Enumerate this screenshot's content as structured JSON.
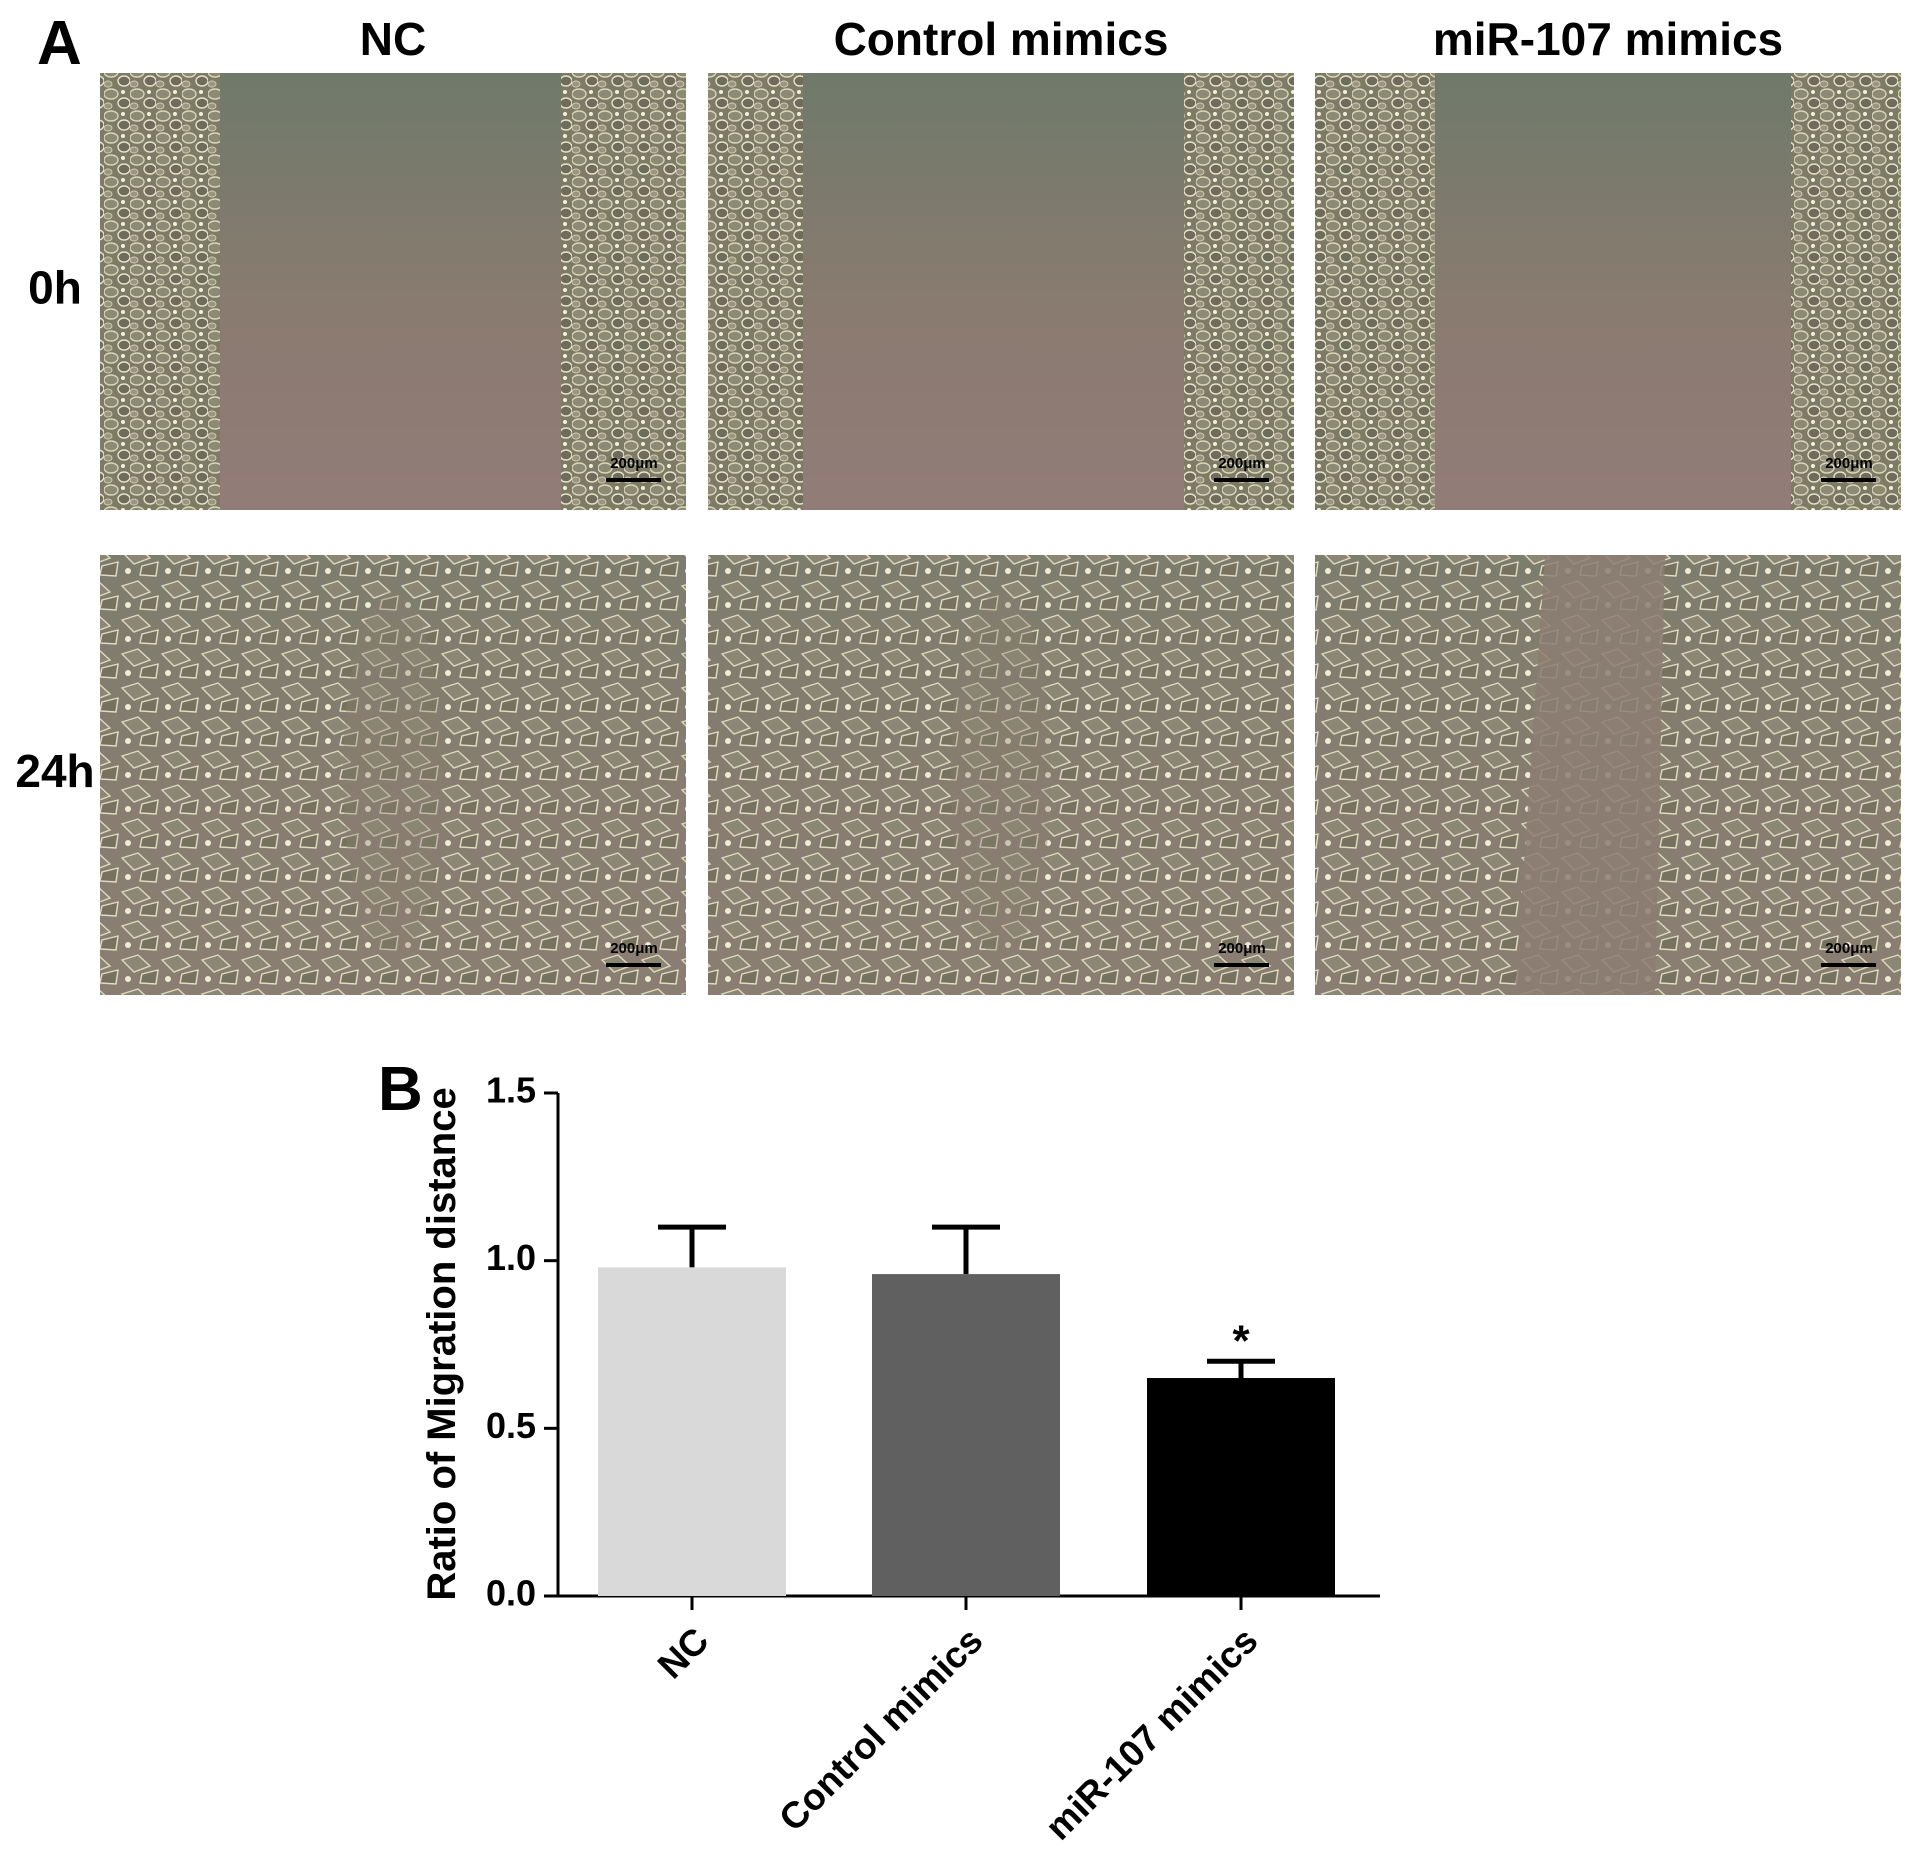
{
  "panel_a": {
    "label": "A",
    "columns": [
      "NC",
      "Control mimics",
      "miR-107 mimics"
    ],
    "rows": [
      "0h",
      "24h"
    ],
    "scale_bar": "200μm"
  },
  "chart_data": {
    "type": "bar",
    "panel_label": "B",
    "ylabel": "Ratio of Migration distance",
    "categories": [
      "NC",
      "Control mimics",
      "miR-107 mimics"
    ],
    "values": [
      0.98,
      0.96,
      0.65
    ],
    "errors": [
      0.12,
      0.14,
      0.05
    ],
    "colors": [
      "#d9d9d9",
      "#606060",
      "#000000"
    ],
    "significance_labels": [
      null,
      null,
      "*"
    ],
    "ylim": [
      0,
      1.5
    ],
    "yticks": [
      {
        "value": 0,
        "label": "0.0"
      },
      0.5,
      {
        "value": 1,
        "label": "1.0"
      },
      1.5
    ]
  }
}
